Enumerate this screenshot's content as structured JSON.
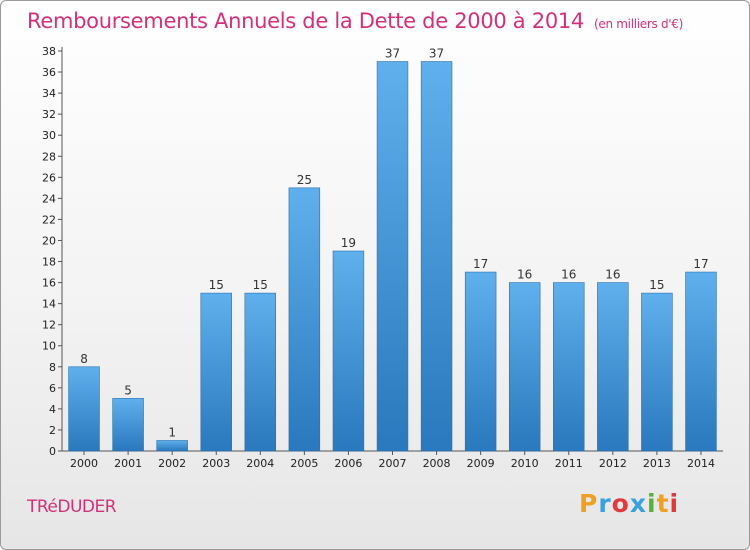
{
  "header": {
    "title": "Remboursements Annuels de la Dette de 2000 à 2014",
    "subtitle": "(en milliers d'€)"
  },
  "footer": {
    "commune": "TRéDUDER",
    "logo_letters": [
      "P",
      "r",
      "o",
      "x",
      "i",
      "t",
      "i"
    ],
    "logo_colors": [
      "#f0a020",
      "#3aa0e0",
      "#e23a3a",
      "#3aa0e0",
      "#59b03a",
      "#f0a020",
      "#e23a3a"
    ]
  },
  "chart_data": {
    "type": "bar",
    "title": "Remboursements Annuels de la Dette de 2000 à 2014",
    "unit": "(en milliers d'€)",
    "categories": [
      "2000",
      "2001",
      "2002",
      "2003",
      "2004",
      "2005",
      "2006",
      "2007",
      "2008",
      "2009",
      "2010",
      "2011",
      "2012",
      "2013",
      "2014"
    ],
    "values": [
      8,
      5,
      1,
      15,
      15,
      25,
      19,
      37,
      37,
      17,
      16,
      16,
      16,
      15,
      17
    ],
    "value_labels": [
      "8",
      "5",
      "1",
      "15",
      "15",
      "25",
      "19",
      "37",
      "37",
      "17",
      "16",
      "16",
      "16",
      "15",
      "17"
    ],
    "ylim": [
      0,
      38
    ],
    "yticks": [
      0,
      2,
      4,
      6,
      8,
      10,
      12,
      14,
      16,
      18,
      20,
      22,
      24,
      26,
      28,
      30,
      32,
      34,
      36,
      38
    ],
    "xlabel": "",
    "ylabel": "",
    "grid": false,
    "bar_color": "#3d8fd4"
  }
}
